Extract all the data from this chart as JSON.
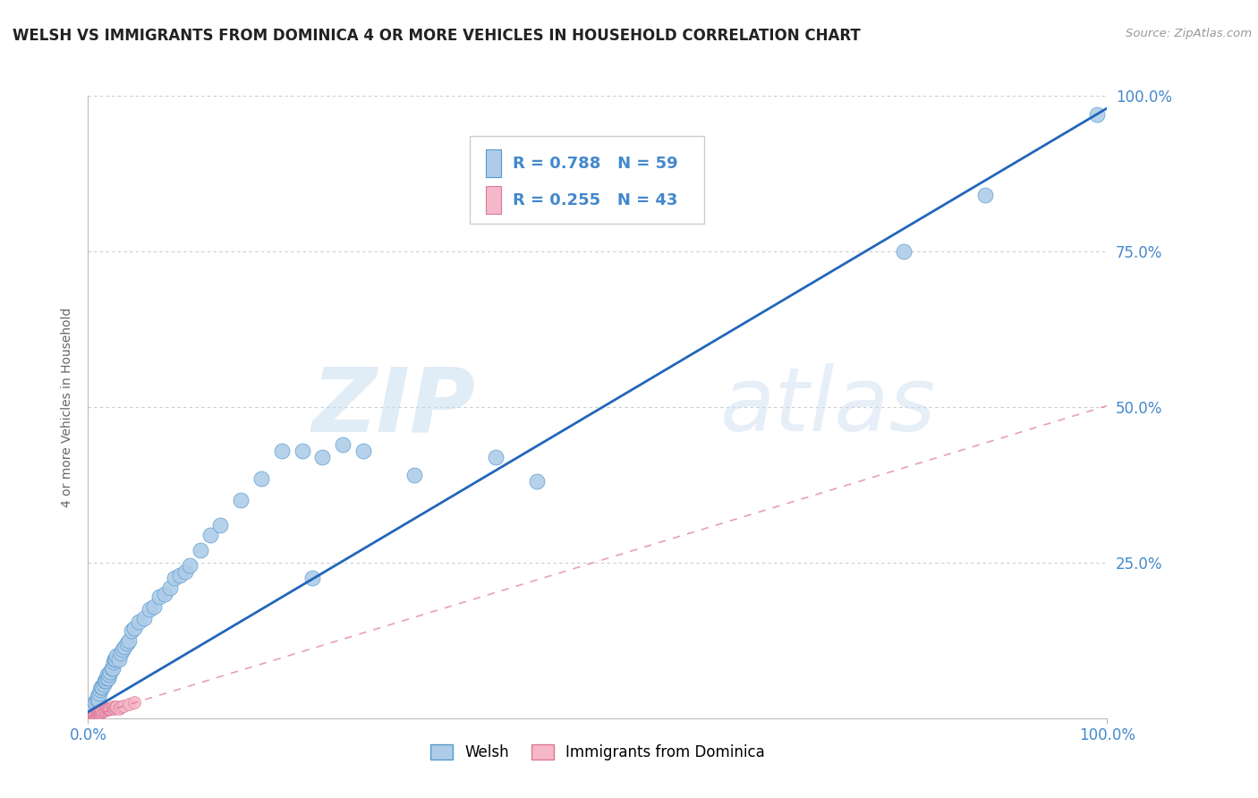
{
  "title": "WELSH VS IMMIGRANTS FROM DOMINICA 4 OR MORE VEHICLES IN HOUSEHOLD CORRELATION CHART",
  "source": "Source: ZipAtlas.com",
  "ylabel": "4 or more Vehicles in Household",
  "watermark_zip": "ZIP",
  "watermark_atlas": "atlas",
  "welsh_R": 0.788,
  "welsh_N": 59,
  "dominica_R": 0.255,
  "dominica_N": 43,
  "welsh_color": "#aecce8",
  "welsh_edge_color": "#5599cc",
  "welsh_line_color": "#2266bb",
  "dominica_color": "#f5b8c8",
  "dominica_edge_color": "#dd7799",
  "dominica_line_color": "#dd7799",
  "background_color": "#ffffff",
  "ytick_positions": [
    0.25,
    0.5,
    0.75,
    1.0
  ],
  "ytick_labels": [
    "25.0%",
    "50.0%",
    "75.0%",
    "100.0%"
  ],
  "grid_color": "#cccccc",
  "title_color": "#222222",
  "axis_label_color": "#4488cc",
  "legend_text_color": "#4488cc",
  "welsh_x": [
    0.005,
    0.007,
    0.008,
    0.009,
    0.01,
    0.011,
    0.012,
    0.013,
    0.014,
    0.015,
    0.016,
    0.017,
    0.018,
    0.019,
    0.02,
    0.021,
    0.022,
    0.023,
    0.024,
    0.025,
    0.026,
    0.027,
    0.028,
    0.03,
    0.032,
    0.034,
    0.036,
    0.038,
    0.04,
    0.043,
    0.045,
    0.05,
    0.055,
    0.06,
    0.065,
    0.07,
    0.075,
    0.08,
    0.085,
    0.09,
    0.095,
    0.1,
    0.11,
    0.12,
    0.13,
    0.15,
    0.17,
    0.19,
    0.21,
    0.23,
    0.25,
    0.27,
    0.32,
    0.22,
    0.4,
    0.44,
    0.8,
    0.88,
    0.99
  ],
  "welsh_y": [
    0.02,
    0.025,
    0.03,
    0.035,
    0.03,
    0.04,
    0.045,
    0.05,
    0.05,
    0.055,
    0.06,
    0.06,
    0.065,
    0.07,
    0.065,
    0.07,
    0.075,
    0.08,
    0.08,
    0.09,
    0.095,
    0.095,
    0.1,
    0.095,
    0.105,
    0.11,
    0.115,
    0.12,
    0.125,
    0.14,
    0.145,
    0.155,
    0.16,
    0.175,
    0.18,
    0.195,
    0.2,
    0.21,
    0.225,
    0.23,
    0.235,
    0.245,
    0.27,
    0.295,
    0.31,
    0.35,
    0.385,
    0.43,
    0.43,
    0.42,
    0.44,
    0.43,
    0.39,
    0.225,
    0.42,
    0.38,
    0.75,
    0.84,
    0.97
  ],
  "dominica_x": [
    0.003,
    0.004,
    0.005,
    0.005,
    0.006,
    0.006,
    0.007,
    0.007,
    0.008,
    0.008,
    0.009,
    0.009,
    0.01,
    0.01,
    0.011,
    0.011,
    0.012,
    0.012,
    0.013,
    0.013,
    0.014,
    0.014,
    0.015,
    0.015,
    0.016,
    0.017,
    0.018,
    0.019,
    0.02,
    0.02,
    0.021,
    0.022,
    0.023,
    0.024,
    0.025,
    0.026,
    0.027,
    0.028,
    0.03,
    0.032,
    0.035,
    0.04,
    0.045
  ],
  "dominica_y": [
    0.003,
    0.004,
    0.005,
    0.006,
    0.005,
    0.007,
    0.006,
    0.008,
    0.007,
    0.009,
    0.008,
    0.01,
    0.009,
    0.011,
    0.01,
    0.012,
    0.009,
    0.011,
    0.01,
    0.013,
    0.011,
    0.013,
    0.012,
    0.014,
    0.013,
    0.014,
    0.015,
    0.016,
    0.014,
    0.016,
    0.015,
    0.016,
    0.017,
    0.018,
    0.015,
    0.017,
    0.018,
    0.019,
    0.016,
    0.018,
    0.02,
    0.022,
    0.025
  ]
}
